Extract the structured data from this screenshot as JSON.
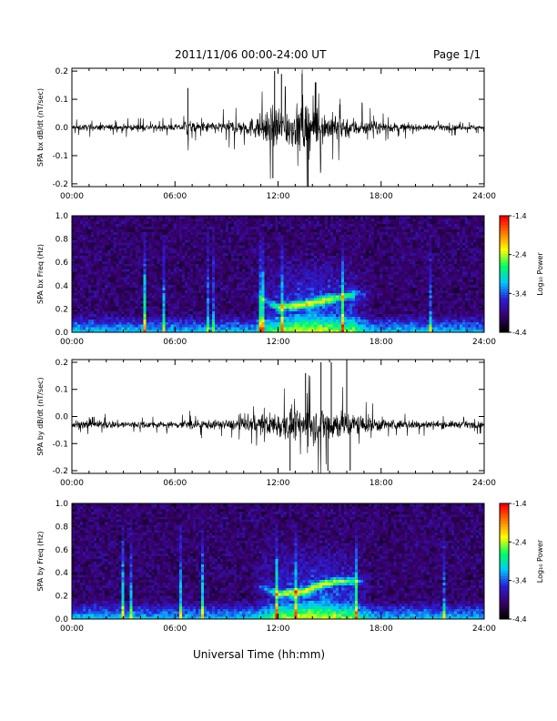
{
  "header": {
    "title": "2011/11/06  00:00-24:00 UT",
    "page": "Page 1/1"
  },
  "footer": {
    "xlabel": "Universal Time (hh:mm)"
  },
  "colorbar": {
    "label": "Log₁₀ Power",
    "ticks": [
      "-1.4",
      "-2.4",
      "-3.4",
      "-4.4"
    ],
    "tick_values": [
      -1.4,
      -2.4,
      -3.4,
      -4.4
    ],
    "range": [
      -4.4,
      -1.4
    ],
    "colors": [
      "#000000",
      "#3a0070",
      "#2a1fd8",
      "#00c8ff",
      "#00ff60",
      "#ffff00",
      "#ff8000",
      "#ff0000"
    ]
  },
  "chart_data": [
    {
      "type": "line",
      "ylabel": "SPA bx dB/dt (nT/sec)",
      "xticks": [
        "00:00",
        "06:00",
        "12:00",
        "18:00",
        "24:00"
      ],
      "xlim": [
        0,
        24
      ],
      "yticks": [
        "0.2",
        "0.1",
        "0.0",
        "-0.1",
        "-0.2"
      ],
      "ytick_values": [
        0.2,
        0.1,
        0.0,
        -0.1,
        -0.2
      ],
      "ylim": [
        -0.21,
        0.21
      ],
      "baseline": 0.0,
      "envelope": [
        [
          0,
          0.02
        ],
        [
          6.5,
          0.02
        ],
        [
          6.6,
          0.08
        ],
        [
          7,
          0.03
        ],
        [
          9,
          0.04
        ],
        [
          10.5,
          0.06
        ],
        [
          11.5,
          0.11
        ],
        [
          12,
          0.15
        ],
        [
          13,
          0.12
        ],
        [
          13.5,
          0.2
        ],
        [
          14.5,
          0.1
        ],
        [
          16,
          0.07
        ],
        [
          17.5,
          0.04
        ],
        [
          20,
          0.02
        ],
        [
          24,
          0.015
        ]
      ],
      "spikes": [
        [
          6.75,
          0.14
        ],
        [
          11.8,
          0.2
        ],
        [
          12.2,
          0.19
        ],
        [
          13.4,
          0.19
        ],
        [
          13.75,
          -0.21
        ],
        [
          14.2,
          0.16
        ],
        [
          11.7,
          -0.18
        ]
      ]
    },
    {
      "type": "heatmap",
      "ylabel": "SPA bx Freq (Hz)",
      "xticks": [
        "00:00",
        "06:00",
        "12:00",
        "18:00",
        "24:00"
      ],
      "xlim": [
        0,
        24
      ],
      "yticks": [
        "1.0",
        "0.8",
        "0.6",
        "0.4",
        "0.2",
        "0.0"
      ],
      "ytick_values": [
        1.0,
        0.8,
        0.6,
        0.4,
        0.2,
        0.0
      ],
      "ylim": [
        0,
        1.0
      ],
      "zlim": [
        -4.4,
        -1.4
      ],
      "band": [
        [
          10.5,
          0.33
        ],
        [
          12,
          0.22
        ],
        [
          13.5,
          0.24
        ],
        [
          14.5,
          0.27
        ],
        [
          15.5,
          0.3
        ],
        [
          16.5,
          0.33
        ]
      ],
      "activity_window": [
        10.5,
        17.5
      ]
    },
    {
      "type": "line",
      "ylabel": "SPA by dB/dt (nT/sec)",
      "xticks": [
        "00:00",
        "06:00",
        "12:00",
        "18:00",
        "24:00"
      ],
      "xlim": [
        0,
        24
      ],
      "yticks": [
        "0.2",
        "0.1",
        "0.0",
        "-0.1",
        "-0.2"
      ],
      "ytick_values": [
        0.2,
        0.1,
        0.0,
        -0.1,
        -0.2
      ],
      "ylim": [
        -0.21,
        0.21
      ],
      "baseline": -0.03,
      "envelope": [
        [
          0,
          0.03
        ],
        [
          3,
          0.025
        ],
        [
          6,
          0.02
        ],
        [
          6.5,
          0.04
        ],
        [
          7,
          0.03
        ],
        [
          9,
          0.03
        ],
        [
          11,
          0.06
        ],
        [
          12,
          0.09
        ],
        [
          13,
          0.1
        ],
        [
          14.5,
          0.12
        ],
        [
          15.5,
          0.1
        ],
        [
          17,
          0.06
        ],
        [
          19,
          0.03
        ],
        [
          24,
          0.02
        ]
      ],
      "spikes": [
        [
          12.7,
          -0.2
        ],
        [
          13.6,
          0.16
        ],
        [
          14.5,
          0.2
        ],
        [
          15.1,
          0.2
        ],
        [
          16.0,
          0.2
        ],
        [
          16.2,
          -0.2
        ],
        [
          14.9,
          -0.2
        ]
      ]
    },
    {
      "type": "heatmap",
      "ylabel": "SPA by Freq (Hz)",
      "xticks": [
        "00:00",
        "06:00",
        "12:00",
        "18:00",
        "24:00"
      ],
      "xlim": [
        0,
        24
      ],
      "yticks": [
        "1.0",
        "0.8",
        "0.6",
        "0.4",
        "0.2",
        "0.0"
      ],
      "ytick_values": [
        1.0,
        0.8,
        0.6,
        0.4,
        0.2,
        0.0
      ],
      "ylim": [
        0,
        1.0
      ],
      "zlim": [
        -4.4,
        -1.4
      ],
      "band": [
        [
          10.5,
          0.3
        ],
        [
          12,
          0.22
        ],
        [
          13.5,
          0.24
        ],
        [
          14.5,
          0.3
        ],
        [
          15.5,
          0.33
        ],
        [
          16.5,
          0.33
        ]
      ],
      "activity_window": [
        10.5,
        17.5
      ]
    }
  ]
}
